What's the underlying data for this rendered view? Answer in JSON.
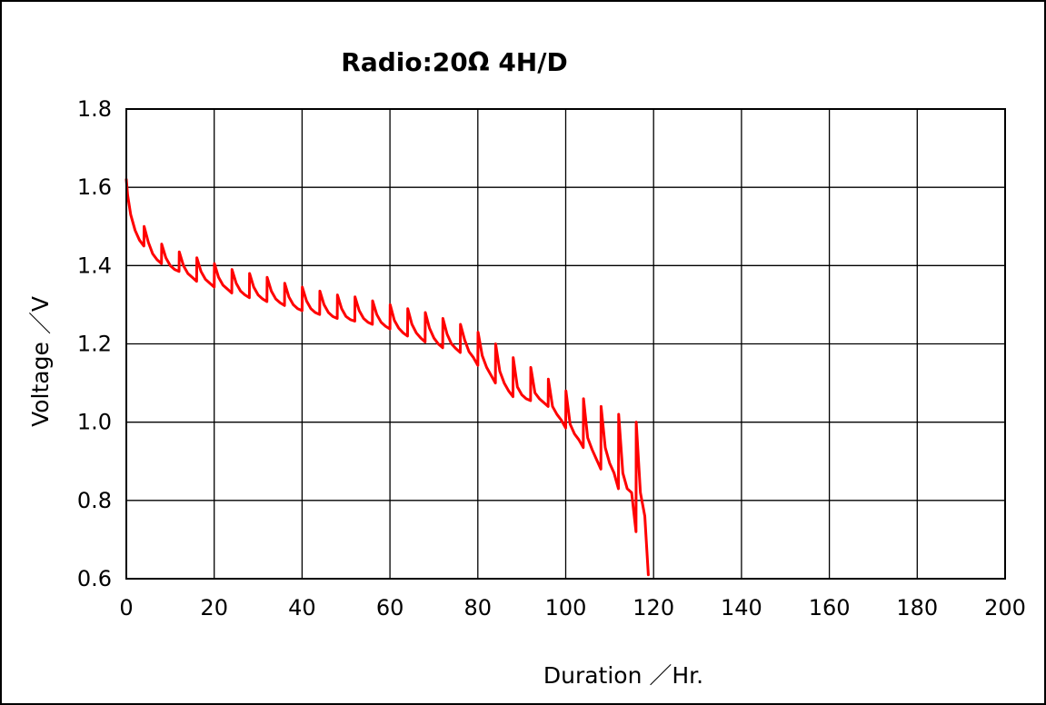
{
  "chart_data": {
    "type": "line",
    "title": "Radio:20Ω 4H/D",
    "xlabel": "Duration ／Hr.",
    "ylabel": "Voltage ／V",
    "xlim": [
      0,
      200
    ],
    "ylim": [
      0.6,
      1.8
    ],
    "x_ticks": [
      "0",
      "20",
      "40",
      "60",
      "80",
      "100",
      "120",
      "140",
      "160",
      "180",
      "200"
    ],
    "y_ticks": [
      "0.6",
      "0.8",
      "1.0",
      "1.2",
      "1.4",
      "1.6",
      "1.8"
    ],
    "grid": true,
    "legend": "none",
    "series_color": "#ff0000",
    "series": [
      {
        "x": [
          0,
          0.3,
          1,
          2,
          3,
          4,
          4.05,
          5,
          6,
          7,
          8,
          8.05,
          9,
          10,
          11,
          12,
          12.05,
          13,
          14,
          15,
          16,
          16.05,
          17,
          18,
          19,
          20,
          20.05,
          21,
          22,
          23,
          24,
          24.05,
          25,
          26,
          27,
          28,
          28.05,
          29,
          30,
          31,
          32,
          32.05,
          33,
          34,
          35,
          36,
          36.05,
          37,
          38,
          39,
          40,
          40.05,
          41,
          42,
          43,
          44,
          44.05,
          45,
          46,
          47,
          48,
          48.05,
          49,
          50,
          51,
          52,
          52.05,
          53,
          54,
          55,
          56,
          56.05,
          57,
          58,
          59,
          60,
          60.05,
          61,
          62,
          63,
          64,
          64.05,
          65,
          66,
          67,
          68,
          68.05,
          69,
          70,
          71,
          72,
          72.05,
          73,
          74,
          75,
          76,
          76.05,
          77,
          78,
          79,
          80,
          80.05,
          81,
          82,
          83,
          84,
          84.05,
          85,
          86,
          87,
          88,
          88.05,
          89,
          90,
          91,
          92,
          92.05,
          93,
          94,
          95,
          96,
          96.05,
          97,
          98,
          99,
          100,
          100.05,
          101,
          102,
          103,
          104,
          104.05,
          105,
          106,
          107,
          108,
          108.05,
          109,
          110,
          111,
          112,
          112.05,
          113,
          114,
          115,
          116,
          116.05,
          117,
          118,
          118.8
        ],
        "y": [
          1.62,
          1.58,
          1.53,
          1.49,
          1.465,
          1.45,
          1.5,
          1.46,
          1.43,
          1.415,
          1.405,
          1.455,
          1.42,
          1.4,
          1.39,
          1.385,
          1.435,
          1.4,
          1.38,
          1.37,
          1.36,
          1.42,
          1.385,
          1.365,
          1.355,
          1.345,
          1.405,
          1.37,
          1.35,
          1.34,
          1.33,
          1.39,
          1.355,
          1.335,
          1.325,
          1.318,
          1.38,
          1.345,
          1.325,
          1.315,
          1.308,
          1.37,
          1.335,
          1.315,
          1.305,
          1.298,
          1.355,
          1.32,
          1.3,
          1.29,
          1.285,
          1.345,
          1.31,
          1.29,
          1.28,
          1.275,
          1.335,
          1.3,
          1.28,
          1.27,
          1.265,
          1.325,
          1.29,
          1.27,
          1.262,
          1.258,
          1.32,
          1.285,
          1.265,
          1.255,
          1.25,
          1.31,
          1.275,
          1.255,
          1.245,
          1.238,
          1.3,
          1.26,
          1.24,
          1.228,
          1.22,
          1.29,
          1.25,
          1.228,
          1.215,
          1.205,
          1.28,
          1.24,
          1.215,
          1.2,
          1.19,
          1.265,
          1.225,
          1.2,
          1.188,
          1.178,
          1.25,
          1.21,
          1.18,
          1.165,
          1.145,
          1.23,
          1.17,
          1.14,
          1.12,
          1.1,
          1.2,
          1.13,
          1.1,
          1.08,
          1.065,
          1.165,
          1.09,
          1.07,
          1.06,
          1.055,
          1.14,
          1.075,
          1.06,
          1.05,
          1.04,
          1.11,
          1.04,
          1.02,
          1.005,
          0.985,
          1.08,
          0.995,
          0.97,
          0.955,
          0.935,
          1.06,
          0.96,
          0.93,
          0.905,
          0.88,
          1.04,
          0.935,
          0.895,
          0.87,
          0.83,
          1.02,
          0.87,
          0.83,
          0.82,
          0.72,
          1.0,
          0.82,
          0.76,
          0.61
        ]
      }
    ]
  }
}
